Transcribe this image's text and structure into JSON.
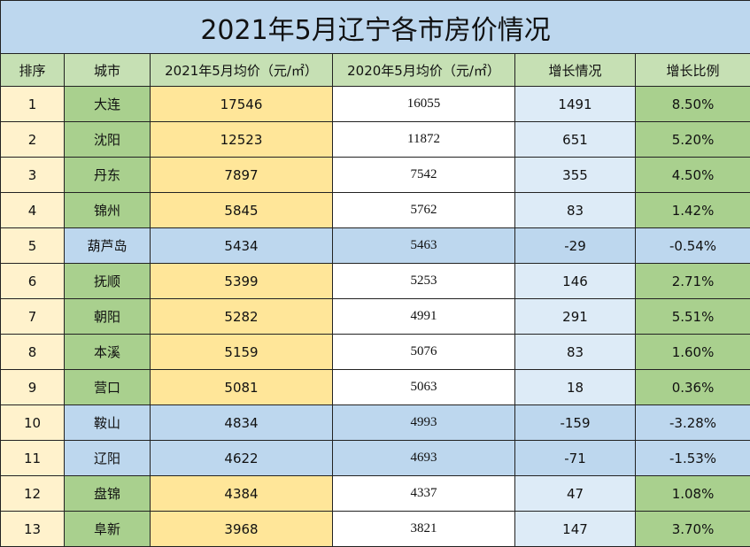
{
  "title": "2021年5月辽宁各市房价情况",
  "columns": [
    "排序",
    "城市",
    "2021年5月均价（元/㎡）",
    "2020年5月均价（元/㎡）",
    "增长情况",
    "增长比例"
  ],
  "rows": [
    {
      "rank": "1",
      "city": "大连",
      "price_2021": "17546",
      "price_2020": "16055",
      "increase": "1491",
      "rate": "8.50%",
      "trend": "up"
    },
    {
      "rank": "2",
      "city": "沈阳",
      "price_2021": "12523",
      "price_2020": "11872",
      "increase": "651",
      "rate": "5.20%",
      "trend": "up"
    },
    {
      "rank": "3",
      "city": "丹东",
      "price_2021": "7897",
      "price_2020": "7542",
      "increase": "355",
      "rate": "4.50%",
      "trend": "up"
    },
    {
      "rank": "4",
      "city": "锦州",
      "price_2021": "5845",
      "price_2020": "5762",
      "increase": "83",
      "rate": "1.42%",
      "trend": "up"
    },
    {
      "rank": "5",
      "city": "葫芦岛",
      "price_2021": "5434",
      "price_2020": "5463",
      "increase": "-29",
      "rate": "-0.54%",
      "trend": "down"
    },
    {
      "rank": "6",
      "city": "抚顺",
      "price_2021": "5399",
      "price_2020": "5253",
      "increase": "146",
      "rate": "2.71%",
      "trend": "up"
    },
    {
      "rank": "7",
      "city": "朝阳",
      "price_2021": "5282",
      "price_2020": "4991",
      "increase": "291",
      "rate": "5.51%",
      "trend": "up"
    },
    {
      "rank": "8",
      "city": "本溪",
      "price_2021": "5159",
      "price_2020": "5076",
      "increase": "83",
      "rate": "1.60%",
      "trend": "up"
    },
    {
      "rank": "9",
      "city": "营口",
      "price_2021": "5081",
      "price_2020": "5063",
      "increase": "18",
      "rate": "0.36%",
      "trend": "up"
    },
    {
      "rank": "10",
      "city": "鞍山",
      "price_2021": "4834",
      "price_2020": "4993",
      "increase": "-159",
      "rate": "-3.28%",
      "trend": "down"
    },
    {
      "rank": "11",
      "city": "辽阳",
      "price_2021": "4622",
      "price_2020": "4693",
      "increase": "-71",
      "rate": "-1.53%",
      "trend": "down"
    },
    {
      "rank": "12",
      "city": "盘锦",
      "price_2021": "4384",
      "price_2020": "4337",
      "increase": "47",
      "rate": "1.08%",
      "trend": "up"
    },
    {
      "rank": "13",
      "city": "阜新",
      "price_2021": "3968",
      "price_2020": "3821",
      "increase": "147",
      "rate": "3.70%",
      "trend": "up"
    }
  ],
  "colors": {
    "title_bg": "#bdd7ee",
    "header_bg": "#c6e0b4",
    "rank_bg": "#fff2cc",
    "city_bg": "#a9d08e",
    "price_2021_bg": "#ffe699",
    "increase_bg": "#ddebf7",
    "rate_bg": "#a9d08e",
    "decline_row_bg": "#bdd7ee"
  }
}
